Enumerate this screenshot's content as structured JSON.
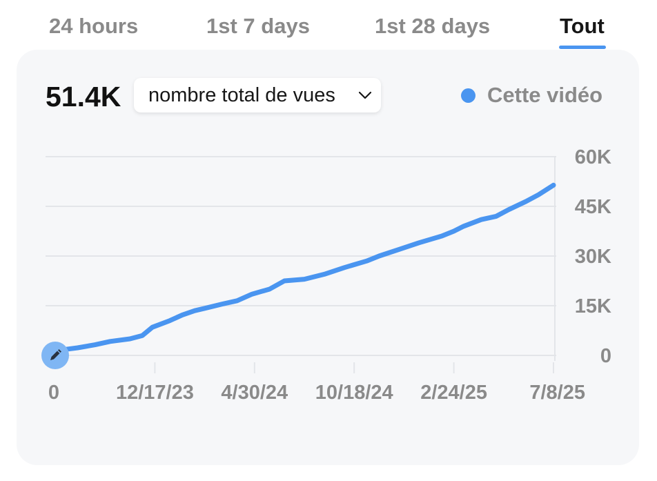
{
  "tabs": [
    {
      "label": "24 hours",
      "active": false
    },
    {
      "label": "1st 7 days",
      "active": false
    },
    {
      "label": "1st 28 days",
      "active": false
    },
    {
      "label": "Tout",
      "active": true
    }
  ],
  "summary": {
    "total": "51.4K",
    "metric_label": "nombre total de vues",
    "chevron_icon": "chevron-down-icon"
  },
  "legend": {
    "label": "Cette vidéo",
    "color": "#4a95f0"
  },
  "marker_icon": "pencil-icon",
  "colors": {
    "line": "#4a95f0",
    "grid": "#e3e5e9",
    "tick_text": "#8a8a8a",
    "card_bg": "#f6f7f9",
    "active_tab": "#161616",
    "inactive_tab": "#8a8a8a"
  },
  "chart_data": {
    "type": "line",
    "title": "",
    "xlabel": "",
    "ylabel": "",
    "y_ticks": [
      "60K",
      "45K",
      "30K",
      "15K",
      "0"
    ],
    "y_tick_values": [
      60000,
      45000,
      30000,
      15000,
      0
    ],
    "ylim": [
      0,
      60000
    ],
    "x_ticks": [
      "0",
      "12/17/23",
      "4/30/24",
      "10/18/24",
      "2/24/25",
      "7/8/25"
    ],
    "grid": true,
    "y_axis_position": "right",
    "series": [
      {
        "name": "Cette vidéo",
        "color": "#4a95f0",
        "points": [
          [
            0.0,
            0
          ],
          [
            0.01,
            1600
          ],
          [
            0.045,
            2300
          ],
          [
            0.08,
            3200
          ],
          [
            0.11,
            4200
          ],
          [
            0.15,
            5000
          ],
          [
            0.175,
            6000
          ],
          [
            0.195,
            8500
          ],
          [
            0.23,
            10500
          ],
          [
            0.255,
            12200
          ],
          [
            0.28,
            13500
          ],
          [
            0.3,
            14200
          ],
          [
            0.335,
            15500
          ],
          [
            0.365,
            16500
          ],
          [
            0.395,
            18500
          ],
          [
            0.43,
            20000
          ],
          [
            0.46,
            22500
          ],
          [
            0.5,
            23000
          ],
          [
            0.54,
            24500
          ],
          [
            0.58,
            26500
          ],
          [
            0.625,
            28500
          ],
          [
            0.65,
            30000
          ],
          [
            0.69,
            32000
          ],
          [
            0.73,
            34000
          ],
          [
            0.775,
            36000
          ],
          [
            0.8,
            37500
          ],
          [
            0.82,
            39000
          ],
          [
            0.855,
            41000
          ],
          [
            0.885,
            42000
          ],
          [
            0.91,
            44000
          ],
          [
            0.945,
            46500
          ],
          [
            0.97,
            48500
          ],
          [
            1.0,
            51400
          ]
        ]
      }
    ]
  }
}
